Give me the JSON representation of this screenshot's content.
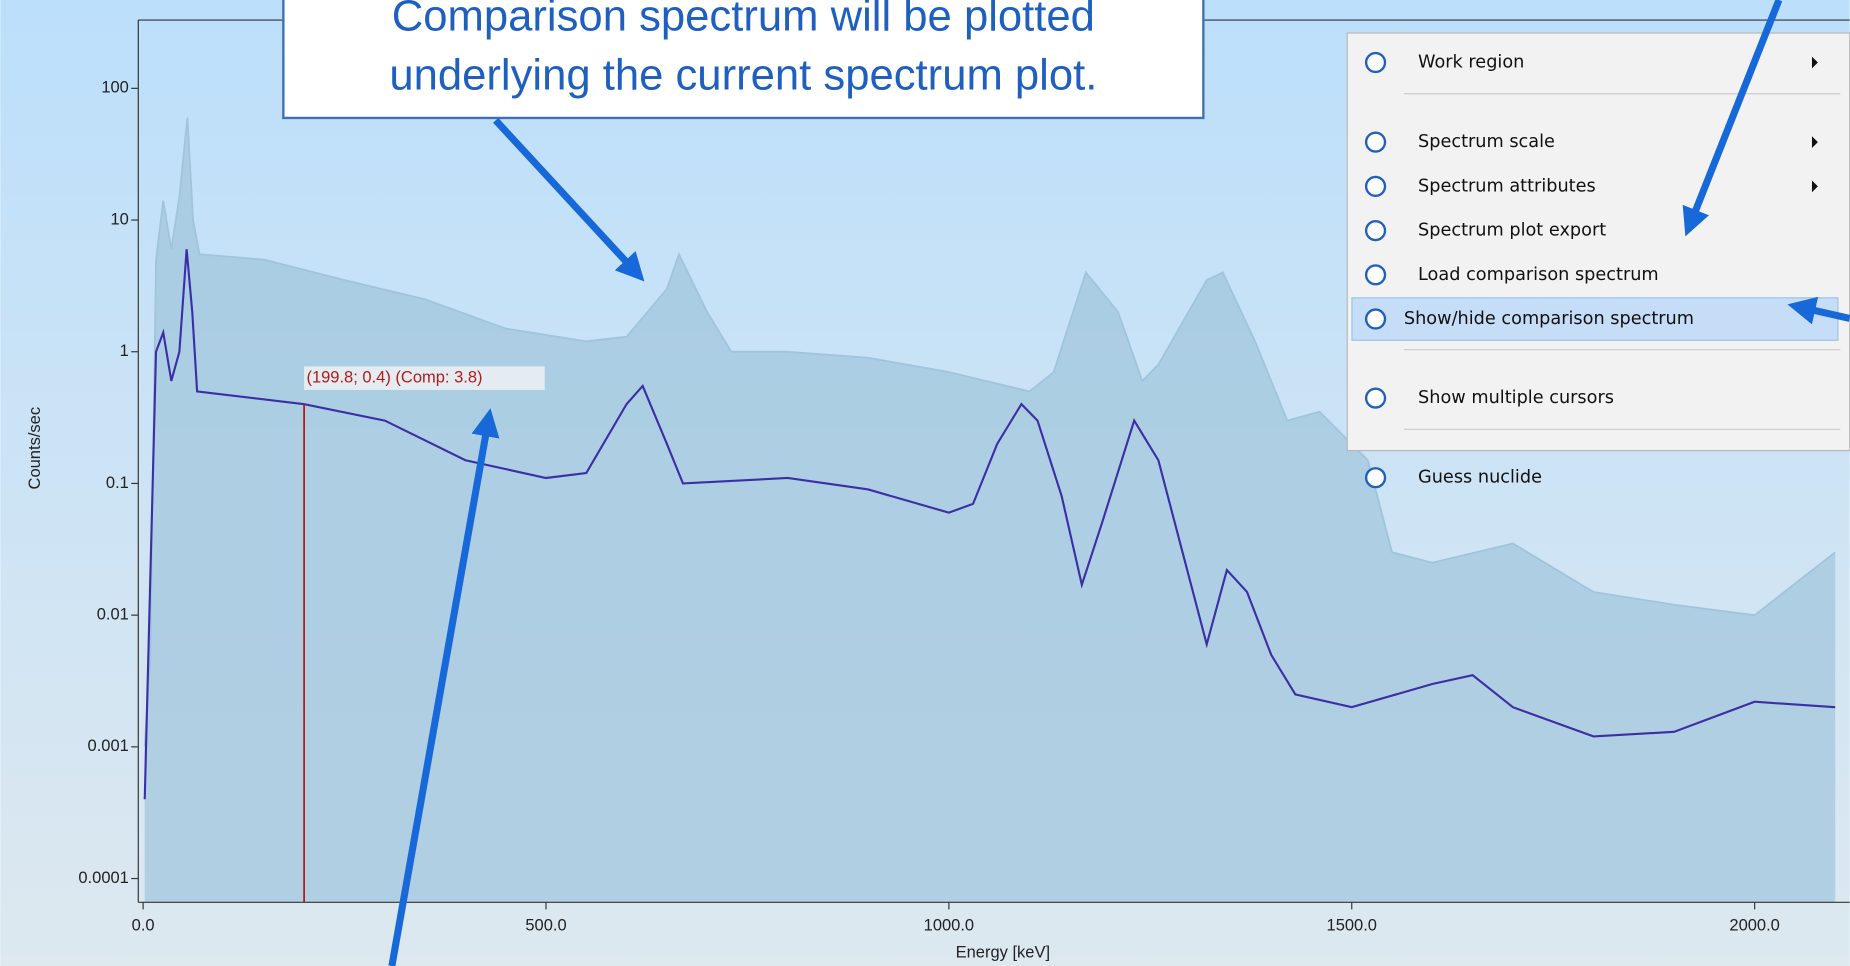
{
  "chart_data": {
    "type": "line",
    "y_scale": "log",
    "xlabel": "Energy [keV]",
    "ylabel": "Counts/sec",
    "xlim": [
      -6,
      2118
    ],
    "ylim": [
      6.6e-05,
      330
    ],
    "xticks": [
      {
        "value": 0,
        "label": "0.0"
      },
      {
        "value": 500,
        "label": "500.0"
      },
      {
        "value": 1000,
        "label": "1000.0"
      },
      {
        "value": 1500,
        "label": "1500.0"
      },
      {
        "value": 2000,
        "label": "2000.0"
      }
    ],
    "yticks": [
      0.0001,
      0.001,
      0.01,
      0.1,
      1,
      10,
      100
    ],
    "series": [
      {
        "color": "#3b2fa6",
        "x": [
          2,
          9,
          16,
          25,
          35,
          45,
          54,
          61,
          67,
          200,
          300,
          400,
          500,
          550,
          600,
          620,
          650,
          670,
          800,
          900,
          1000,
          1030,
          1060,
          1090,
          1110,
          1140,
          1165,
          1190,
          1230,
          1260,
          1290,
          1320,
          1345,
          1370,
          1400,
          1430,
          1500,
          1600,
          1650,
          1700,
          1800,
          1900,
          2000,
          2100
        ],
        "values": [
          0.0004,
          0.02,
          1.0,
          1.4,
          0.6,
          1.0,
          6.0,
          2.0,
          0.5,
          0.4,
          0.3,
          0.15,
          0.11,
          0.12,
          0.4,
          0.55,
          0.2,
          0.1,
          0.11,
          0.09,
          0.06,
          0.07,
          0.2,
          0.4,
          0.3,
          0.08,
          0.017,
          0.05,
          0.3,
          0.15,
          0.03,
          0.006,
          0.022,
          0.015,
          0.005,
          0.0025,
          0.002,
          0.003,
          0.0035,
          0.002,
          0.0012,
          0.0013,
          0.0022,
          0.002
        ]
      },
      {
        "color": "#9fc4dc",
        "x": [
          2,
          9,
          16,
          25,
          35,
          45,
          55,
          62,
          70,
          150,
          250,
          350,
          450,
          550,
          600,
          650,
          665,
          700,
          730,
          800,
          900,
          1000,
          1100,
          1130,
          1170,
          1210,
          1240,
          1260,
          1320,
          1340,
          1380,
          1420,
          1460,
          1520,
          1550,
          1600,
          1700,
          1800,
          1900,
          2000,
          2100
        ],
        "values": [
          0.001,
          0.005,
          5,
          14,
          6,
          15,
          60,
          10,
          5.5,
          5,
          3.5,
          2.5,
          1.5,
          1.2,
          1.3,
          3,
          5.5,
          2,
          1.0,
          1.0,
          0.9,
          0.7,
          0.5,
          0.7,
          4,
          2,
          0.6,
          0.8,
          3.5,
          4,
          1.2,
          0.3,
          0.35,
          0.15,
          0.03,
          0.025,
          0.035,
          0.015,
          0.012,
          0.01,
          0.03
        ]
      }
    ],
    "cursor": {
      "x": 199.8,
      "y": 0.4,
      "label": "(199.8; 0.4) (Comp: 3.8)"
    }
  },
  "callout": {
    "lines": [
      "Comparison spectrum will be plotted",
      "underlying the current spectrum plot."
    ]
  },
  "menu": {
    "groups": [
      [
        {
          "label": "Work region",
          "submenu": true
        }
      ],
      [
        {
          "label": "Spectrum scale",
          "submenu": true
        },
        {
          "label": "Spectrum attributes",
          "submenu": true
        },
        {
          "label": "Spectrum plot export"
        },
        {
          "label": "Load comparison spectrum"
        },
        {
          "label": "Show/hide comparison spectrum",
          "highlighted": true
        }
      ],
      [
        {
          "label": "Show multiple cursors"
        }
      ],
      [
        {
          "label": "Guess nuclide"
        }
      ]
    ]
  }
}
